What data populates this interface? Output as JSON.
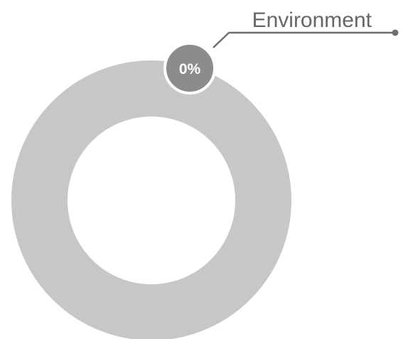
{
  "chart_data": {
    "type": "pie",
    "donut": true,
    "categories": [
      "Environment"
    ],
    "values": [
      0
    ],
    "data_labels": [
      "0%"
    ],
    "colors": {
      "ring": "#c6c7c8",
      "badge_fill": "#8c8c8e",
      "badge_border": "#ffffff",
      "badge_text": "#ffffff",
      "leader_line": "#6f6f71",
      "label_text": "#666666"
    }
  }
}
